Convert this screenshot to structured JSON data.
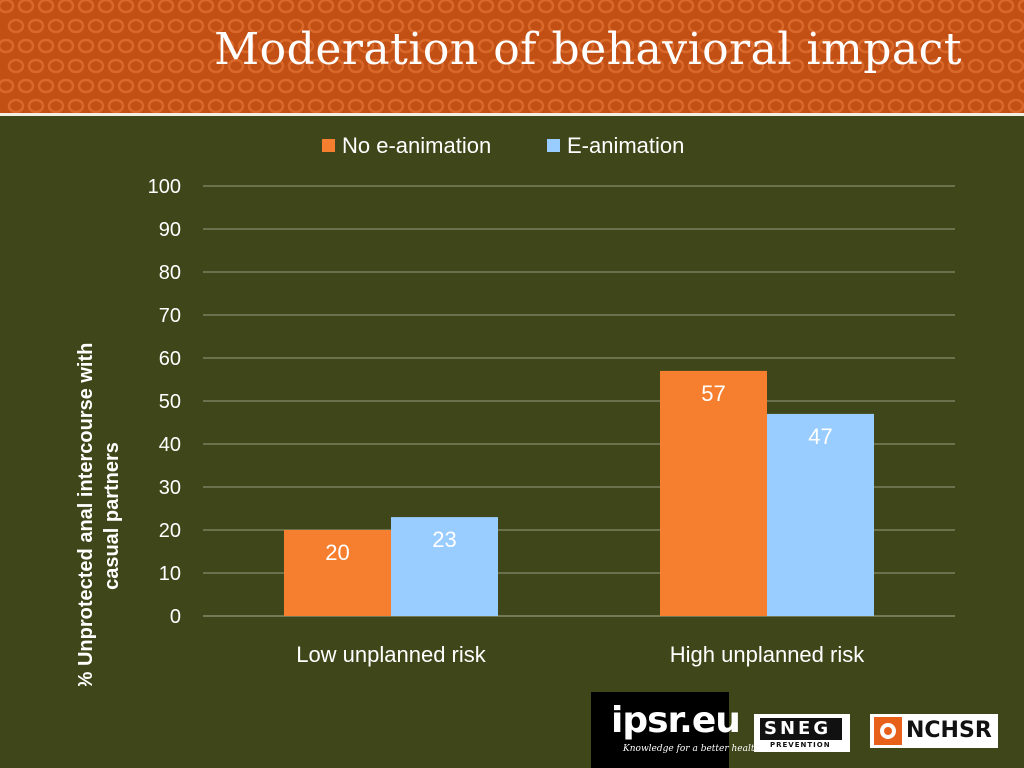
{
  "slide": {
    "title": "Moderation of behavioral impact"
  },
  "colors": {
    "background": "#3f4619",
    "header": "#c24f14",
    "series_no_eanimation": "#f57f2e",
    "series_eanimation": "#99ccff",
    "text": "#ffffff"
  },
  "chart_data": {
    "type": "bar",
    "categories": [
      "Low unplanned risk",
      "High unplanned risk"
    ],
    "series": [
      {
        "name": "No e-animation",
        "values": [
          20,
          57
        ]
      },
      {
        "name": "E-animation",
        "values": [
          23,
          47
        ]
      }
    ],
    "title": "",
    "xlabel": "",
    "ylabel": "% Unprotected anal intercourse with casual partners",
    "ylabel_lines": [
      "% Unprotected anal intercourse with",
      "casual partners"
    ],
    "ylim": [
      0,
      100
    ],
    "yticks": [
      0,
      10,
      20,
      30,
      40,
      50,
      60,
      70,
      80,
      90,
      100
    ],
    "grid": true,
    "legend": "top",
    "data_labels": true
  },
  "logos": {
    "ipsr": {
      "text": "ipsr.eu",
      "tagline": "Knowledge for a better health"
    },
    "sneg": {
      "text": "SNEG",
      "subtext": "PREVENTION"
    },
    "nchsr": {
      "text": "NCHSR"
    }
  }
}
